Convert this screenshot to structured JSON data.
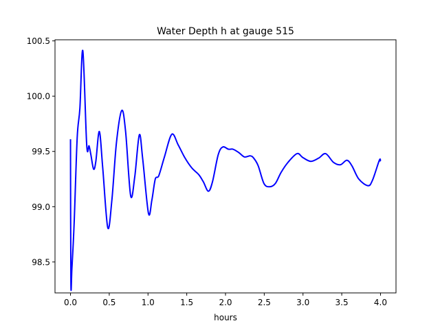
{
  "chart_data": {
    "type": "line",
    "title": "Water Depth h at gauge 515",
    "xlabel": "hours",
    "ylabel": "",
    "xlim": [
      -0.2,
      4.2
    ],
    "ylim": [
      98.22,
      100.51
    ],
    "xticks": [
      0.0,
      0.5,
      1.0,
      1.5,
      2.0,
      2.5,
      3.0,
      3.5,
      4.0
    ],
    "xtick_labels": [
      "0.0",
      "0.5",
      "1.0",
      "1.5",
      "2.0",
      "2.5",
      "3.0",
      "3.5",
      "4.0"
    ],
    "yticks": [
      98.5,
      99.0,
      99.5,
      100.0,
      100.5
    ],
    "ytick_labels": [
      "98.5",
      "99.0",
      "99.5",
      "100.0",
      "100.5"
    ],
    "grid": false,
    "series": [
      {
        "name": "h",
        "color": "#0000ff",
        "x": [
          0.0,
          0.005,
          0.018,
          0.047,
          0.086,
          0.121,
          0.159,
          0.209,
          0.239,
          0.263,
          0.298,
          0.327,
          0.372,
          0.416,
          0.481,
          0.534,
          0.593,
          0.661,
          0.711,
          0.776,
          0.829,
          0.888,
          0.932,
          1.006,
          1.05,
          1.094,
          1.139,
          1.212,
          1.307,
          1.389,
          1.478,
          1.566,
          1.655,
          1.714,
          1.779,
          1.832,
          1.906,
          1.965,
          2.038,
          2.097,
          2.171,
          2.245,
          2.319,
          2.363,
          2.422,
          2.496,
          2.569,
          2.643,
          2.717,
          2.805,
          2.923,
          2.997,
          3.1,
          3.204,
          3.292,
          3.395,
          3.484,
          3.566,
          3.631,
          3.72,
          3.838,
          3.897,
          3.985,
          4.0
        ],
        "y": [
          99.61,
          98.32,
          98.44,
          98.85,
          99.62,
          99.89,
          100.41,
          99.56,
          99.55,
          99.47,
          99.34,
          99.41,
          99.68,
          99.35,
          98.81,
          99.06,
          99.58,
          99.87,
          99.68,
          99.1,
          99.27,
          99.65,
          99.43,
          98.94,
          99.06,
          99.25,
          99.28,
          99.45,
          99.655,
          99.56,
          99.44,
          99.35,
          99.29,
          99.225,
          99.14,
          99.225,
          99.47,
          99.54,
          99.52,
          99.52,
          99.49,
          99.45,
          99.46,
          99.44,
          99.37,
          99.21,
          99.18,
          99.21,
          99.31,
          99.4,
          99.48,
          99.445,
          99.41,
          99.44,
          99.48,
          99.4,
          99.38,
          99.42,
          99.37,
          99.25,
          99.19,
          99.24,
          99.42,
          99.41
        ]
      }
    ]
  }
}
